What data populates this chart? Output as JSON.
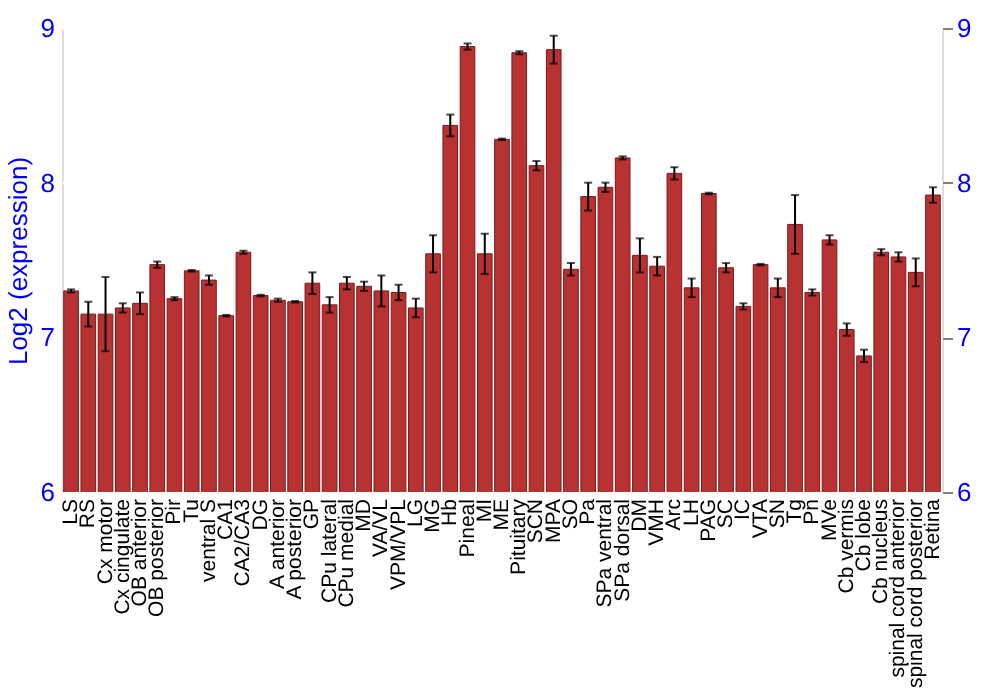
{
  "chart_data": {
    "type": "bar",
    "ylabel": "Log2 (expression)",
    "categories": [
      "LS",
      "RS",
      "Cx motor",
      "Cx cingulate",
      "OB anterior",
      "OB posterior",
      "Pir",
      "Tu",
      "ventral S",
      "CA1",
      "CA2/CA3",
      "DG",
      "A anterior",
      "A posterior",
      "GP",
      "CPu lateral",
      "CPu medial",
      "MD",
      "VA/VL",
      "VPM/VPL",
      "LG",
      "MG",
      "Hb",
      "Pineal",
      "MI",
      "ME",
      "Pituitary",
      "SCN",
      "MPA",
      "SO",
      "Pa",
      "SPa ventral",
      "SPa dorsal",
      "DM",
      "VMH",
      "Arc",
      "LH",
      "PAG",
      "SC",
      "IC",
      "VTA",
      "SN",
      "Tg",
      "Pn",
      "MVe",
      "Cb vermis",
      "Cb lobe",
      "Cb nucleus",
      "spinal cord anterior",
      "spinal cord posterior",
      "Retina"
    ],
    "values": [
      7.3,
      7.15,
      7.15,
      7.19,
      7.22,
      7.47,
      7.25,
      7.43,
      7.37,
      7.14,
      7.55,
      7.27,
      7.24,
      7.23,
      7.35,
      7.21,
      7.35,
      7.33,
      7.3,
      7.29,
      7.19,
      7.54,
      8.37,
      8.88,
      7.54,
      8.28,
      8.84,
      8.11,
      8.86,
      7.44,
      7.91,
      7.97,
      8.16,
      7.53,
      7.46,
      8.06,
      7.32,
      7.93,
      7.45,
      7.2,
      7.47,
      7.32,
      7.73,
      7.29,
      7.63,
      7.05,
      6.88,
      7.55,
      7.52,
      7.42,
      7.92
    ],
    "errors": [
      0.01,
      0.08,
      0.24,
      0.03,
      0.07,
      0.02,
      0.01,
      0.005,
      0.03,
      0.005,
      0.01,
      0.005,
      0.01,
      0.005,
      0.07,
      0.05,
      0.04,
      0.03,
      0.1,
      0.05,
      0.06,
      0.12,
      0.07,
      0.02,
      0.13,
      0.005,
      0.01,
      0.03,
      0.09,
      0.04,
      0.09,
      0.03,
      0.01,
      0.11,
      0.06,
      0.04,
      0.06,
      0.005,
      0.03,
      0.02,
      0.005,
      0.06,
      0.19,
      0.02,
      0.03,
      0.04,
      0.04,
      0.02,
      0.03,
      0.09,
      0.05
    ],
    "color": "#b83232",
    "ylim": [
      6,
      9
    ],
    "yticks": [
      6,
      7,
      8,
      9
    ],
    "y2lim": [
      6,
      9
    ],
    "y2ticks": [
      6,
      7,
      8,
      9
    ],
    "grid": "y"
  }
}
